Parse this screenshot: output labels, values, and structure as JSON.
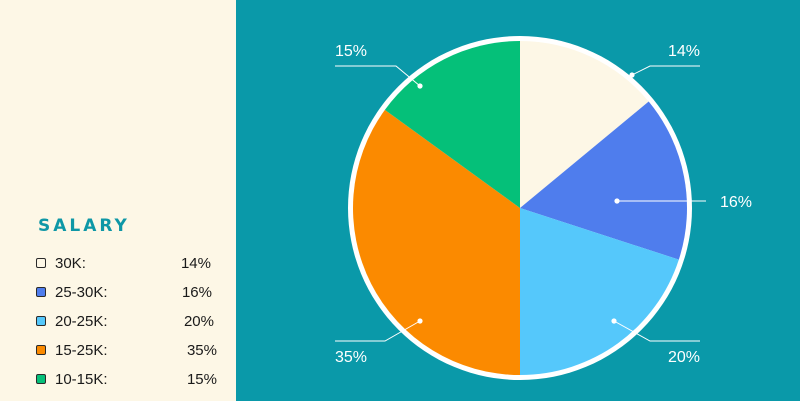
{
  "legend": {
    "title": "SALARY",
    "items": [
      {
        "label": "30K:",
        "pct": "14%",
        "color": "#fdf7e6"
      },
      {
        "label": "25-30K:",
        "pct": "16%",
        "color": "#4f7ded"
      },
      {
        "label": "20-25K:",
        "pct": "20%",
        "color": "#55c8fb"
      },
      {
        "label": "15-25K:",
        "pct": "35%",
        "color": "#fb8a00"
      },
      {
        "label": "10-15K:",
        "pct": "15%",
        "color": "#05c079"
      }
    ]
  },
  "chart_data": {
    "type": "pie",
    "title": "",
    "categories": [
      "30K",
      "25-30K",
      "20-25K",
      "15-25K",
      "10-15K"
    ],
    "values": [
      14,
      16,
      20,
      35,
      15
    ],
    "labels": [
      "14%",
      "16%",
      "20%",
      "35%",
      "15%"
    ],
    "colors": [
      "#fdf7e6",
      "#4f7ded",
      "#55c8fb",
      "#fb8a00",
      "#05c079"
    ],
    "legend_placement": "left",
    "start_angle": "12 o'clock",
    "direction": "clockwise"
  },
  "theme": {
    "background": "#0a99a9",
    "panel": "#fdf7e6",
    "accent": "#0e97a6",
    "pie_outline": "#ffffff"
  }
}
